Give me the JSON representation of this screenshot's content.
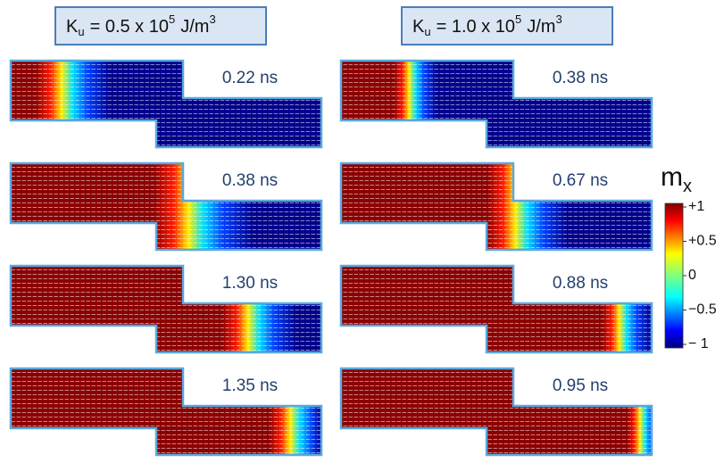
{
  "figure": {
    "columns": [
      {
        "header": {
          "symbol": "K",
          "subscript": "u",
          "text": "= 0.5 x 10",
          "exponent": "5",
          "unit": "J/m",
          "unit_exponent": "3"
        },
        "panels": [
          {
            "time": "0.22 ns"
          },
          {
            "time": "0.38 ns"
          },
          {
            "time": "1.30 ns"
          },
          {
            "time": "1.35 ns"
          }
        ]
      },
      {
        "header": {
          "symbol": "K",
          "subscript": "u",
          "text": "= 1.0 x 10",
          "exponent": "5",
          "unit": "J/m",
          "unit_exponent": "3"
        },
        "panels": [
          {
            "time": "0.38 ns"
          },
          {
            "time": "0.67 ns"
          },
          {
            "time": "0.88 ns"
          },
          {
            "time": "0.95 ns"
          }
        ]
      }
    ],
    "colorbar": {
      "label": "m",
      "label_subscript": "x",
      "ticks": [
        "+1",
        "+0.5",
        "0",
        "−0.5",
        "− 1"
      ]
    }
  }
}
